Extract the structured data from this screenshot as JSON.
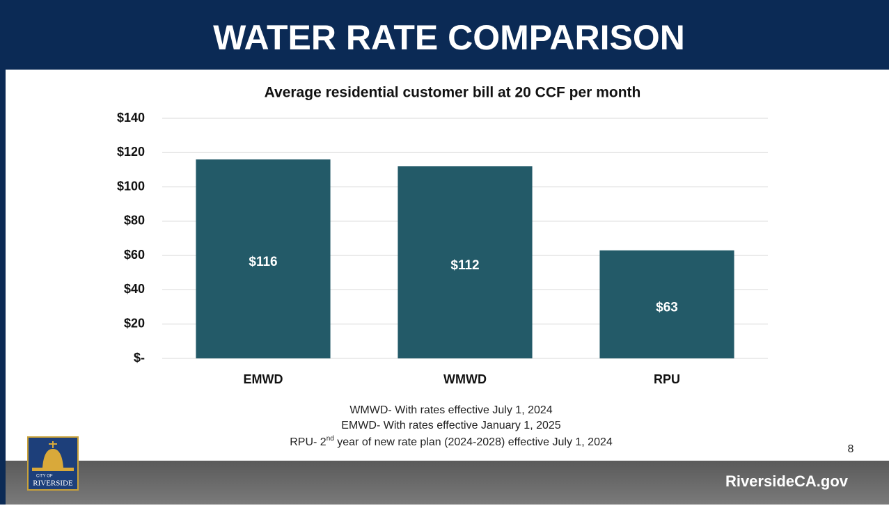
{
  "header": {
    "title": "WATER RATE COMPARISON"
  },
  "chart_data": {
    "type": "bar",
    "title": "Average residential customer bill at 20 CCF per month",
    "categories": [
      "EMWD",
      "WMWD",
      "RPU"
    ],
    "values": [
      116,
      112,
      63
    ],
    "value_labels": [
      "$116",
      "$112",
      "$63"
    ],
    "color": "#235a68",
    "ylim": [
      0,
      140
    ],
    "yticks": [
      {
        "value": 0,
        "label": "$-"
      },
      {
        "value": 20,
        "label": "$20"
      },
      {
        "value": 40,
        "label": "$40"
      },
      {
        "value": 60,
        "label": "$60"
      },
      {
        "value": 80,
        "label": "$80"
      },
      {
        "value": 100,
        "label": "$100"
      },
      {
        "value": 120,
        "label": "$120"
      },
      {
        "value": 140,
        "label": "$140"
      }
    ],
    "grid": true
  },
  "notes": {
    "line1": "WMWD- With rates effective July 1, 2024",
    "line2": "EMWD- With rates effective January 1, 2025",
    "line3a": "RPU- 2",
    "line3sup": "nd",
    "line3b": " year of new rate plan (2024-2028) effective July 1, 2024"
  },
  "page_number": 8,
  "footer": {
    "site": "RiversideCA.gov",
    "logo_top": "CITY OF",
    "logo_bottom": "RIVERSIDE"
  }
}
